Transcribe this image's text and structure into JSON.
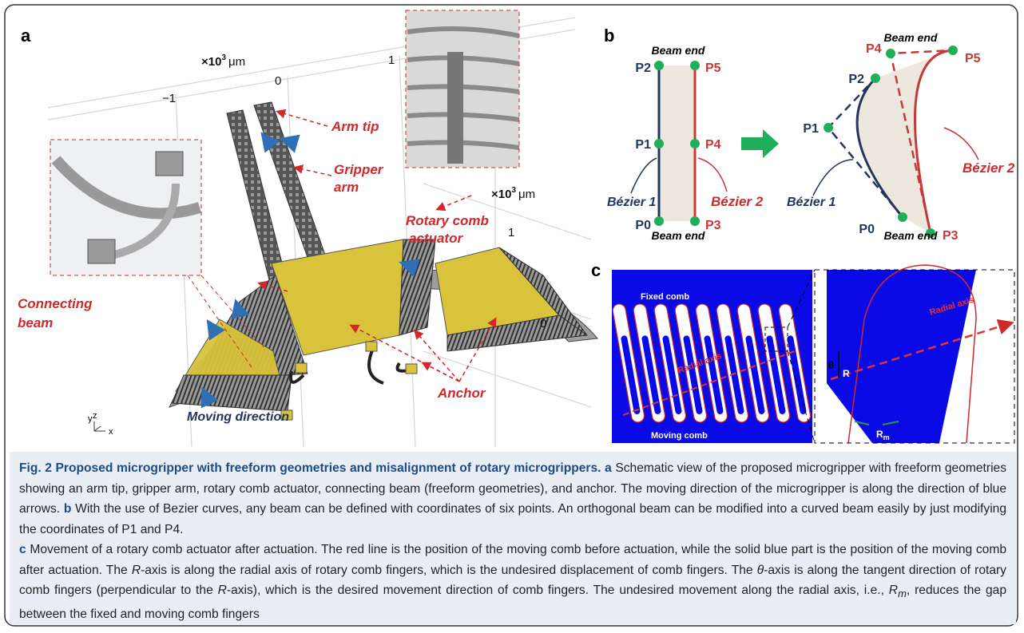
{
  "panel_a": {
    "label": "a",
    "axis_top": {
      "prefix": "×10",
      "exp": "3",
      "unit": "μm",
      "ticks": [
        "−1",
        "0",
        "1"
      ]
    },
    "axis_right": {
      "prefix": "×10",
      "exp": "3",
      "unit": "μm",
      "ticks": [
        "1",
        "0"
      ]
    },
    "labels": {
      "arm_tip": "Arm tip",
      "gripper_arm": [
        "Gripper",
        "arm"
      ],
      "rotary_comb": [
        "Rotary comb",
        "actuator"
      ],
      "connecting_beam": [
        "Connecting",
        "beam"
      ],
      "anchor": "Anchor",
      "moving_direction": "Moving direction"
    },
    "triad": [
      "y",
      "z",
      "x"
    ]
  },
  "panel_b": {
    "label": "b",
    "left": {
      "beam_end_top": "Beam end",
      "beam_end_bottom": "Beam end",
      "points": [
        "P0",
        "P1",
        "P2",
        "P3",
        "P4",
        "P5"
      ],
      "bezier1": "Bézier 1",
      "bezier2": "Bézier 2"
    },
    "right": {
      "beam_end_top": "Beam end",
      "beam_end_bottom": "Beam end",
      "points": [
        "P0",
        "P1",
        "P2",
        "P3",
        "P4",
        "P5"
      ],
      "bezier1": "Bézier 1",
      "bezier2": "Bézier 2"
    }
  },
  "panel_c": {
    "label": "c",
    "fixed_comb": "Fixed comb",
    "moving_comb": "Moving comb",
    "radial_axis_left": "Radial axis",
    "radial_axis_right": "Radial axis",
    "theta": "θ",
    "r": "R",
    "rm": "R",
    "rm_sub": "m"
  },
  "caption": {
    "segments": [
      "Fig. 2 Proposed microgripper with freeform geometries and misalignment of rotary microgrippers.",
      "a",
      "Schematic view of the proposed microgripper with freeform geometries showing an arm tip, gripper arm, rotary comb actuator, connecting beam (freeform geometries), and anchor. The moving direction of the microgripper is along the direction of blue arrows.",
      "b",
      "With the use of Bezier curves, any beam can be defined with coordinates of six points. An orthogonal beam can be modified into a curved beam easily by just modifying the coordinates of P1 and P4.",
      "c",
      "Movement of a rotary comb actuator after actuation. The red line is the position of the moving comb before actuation, while the solid blue part is the position of the moving comb after actuation. The",
      "R",
      "-axis is along the radial axis of rotary comb fingers, which is the undesired displacement of comb fingers. The",
      "θ",
      "-axis is along the tangent direction of rotary comb fingers (perpendicular to the",
      "R",
      "-axis), which is the desired movement direction of comb fingers. The undesired movement along the radial axis, i.e.,",
      "R",
      "m",
      ", reduces the gap between the fixed and moving comb fingers"
    ]
  }
}
